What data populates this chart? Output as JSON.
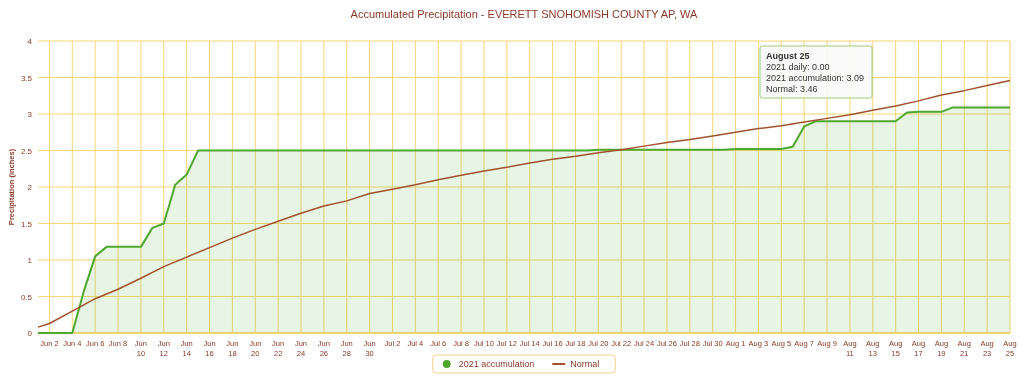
{
  "chart_data": {
    "type": "area",
    "title": "Accumulated Precipitation - EVERETT SNOHOMISH COUNTY AP, WA",
    "ylabel": "Precipitation (inches)",
    "xlim": [
      "2021-06-01",
      "2021-08-25"
    ],
    "ylim": [
      0,
      4
    ],
    "yticks": [
      0,
      0.5,
      1,
      1.5,
      2,
      2.5,
      3,
      3.5,
      4
    ],
    "xticks": [
      {
        "value": "2021-06-02",
        "label": "Jun 2"
      },
      {
        "value": "2021-06-04",
        "label": "Jun 4"
      },
      {
        "value": "2021-06-06",
        "label": "Jun 6"
      },
      {
        "value": "2021-06-08",
        "label": "Jun 8"
      },
      {
        "value": "2021-06-10",
        "label": "Jun 10"
      },
      {
        "value": "2021-06-12",
        "label": "Jun 12"
      },
      {
        "value": "2021-06-14",
        "label": "Jun 14"
      },
      {
        "value": "2021-06-16",
        "label": "Jun 16"
      },
      {
        "value": "2021-06-18",
        "label": "Jun 18"
      },
      {
        "value": "2021-06-20",
        "label": "Jun 20"
      },
      {
        "value": "2021-06-22",
        "label": "Jun 22"
      },
      {
        "value": "2021-06-24",
        "label": "Jun 24"
      },
      {
        "value": "2021-06-26",
        "label": "Jun 26"
      },
      {
        "value": "2021-06-28",
        "label": "Jun 28"
      },
      {
        "value": "2021-06-30",
        "label": "Jun 30"
      },
      {
        "value": "2021-07-02",
        "label": "Jul 2"
      },
      {
        "value": "2021-07-04",
        "label": "Jul 4"
      },
      {
        "value": "2021-07-06",
        "label": "Jul 6"
      },
      {
        "value": "2021-07-08",
        "label": "Jul 8"
      },
      {
        "value": "2021-07-10",
        "label": "Jul 10"
      },
      {
        "value": "2021-07-12",
        "label": "Jul 12"
      },
      {
        "value": "2021-07-14",
        "label": "Jul 14"
      },
      {
        "value": "2021-07-16",
        "label": "Jul 16"
      },
      {
        "value": "2021-07-18",
        "label": "Jul 18"
      },
      {
        "value": "2021-07-20",
        "label": "Jul 20"
      },
      {
        "value": "2021-07-22",
        "label": "Jul 22"
      },
      {
        "value": "2021-07-24",
        "label": "Jul 24"
      },
      {
        "value": "2021-07-26",
        "label": "Jul 26"
      },
      {
        "value": "2021-07-28",
        "label": "Jul 28"
      },
      {
        "value": "2021-07-30",
        "label": "Jul 30"
      },
      {
        "value": "2021-08-01",
        "label": "Aug 1"
      },
      {
        "value": "2021-08-03",
        "label": "Aug 3"
      },
      {
        "value": "2021-08-05",
        "label": "Aug 5"
      },
      {
        "value": "2021-08-07",
        "label": "Aug 7"
      },
      {
        "value": "2021-08-09",
        "label": "Aug 9"
      },
      {
        "value": "2021-08-11",
        "label": "Aug 11"
      },
      {
        "value": "2021-08-13",
        "label": "Aug 13"
      },
      {
        "value": "2021-08-15",
        "label": "Aug 15"
      },
      {
        "value": "2021-08-17",
        "label": "Aug 17"
      },
      {
        "value": "2021-08-19",
        "label": "Aug 19"
      },
      {
        "value": "2021-08-21",
        "label": "Aug 21"
      },
      {
        "value": "2021-08-23",
        "label": "Aug 23"
      },
      {
        "value": "2021-08-25",
        "label": "Aug 25"
      }
    ],
    "grid": true,
    "legend": "bottom",
    "marker": "none",
    "annotations": [
      "August 25",
      "2021 daily: 0.00",
      "2021 accumulation: 3.09",
      "Normal: 3.46"
    ],
    "series": [
      {
        "name": "2021 accumulation",
        "color": "#4fa82e",
        "x": [
          "2021-06-01",
          "2021-06-02",
          "2021-06-03",
          "2021-06-04",
          "2021-06-05",
          "2021-06-06",
          "2021-06-07",
          "2021-06-08",
          "2021-06-09",
          "2021-06-10",
          "2021-06-11",
          "2021-06-12",
          "2021-06-13",
          "2021-06-14",
          "2021-06-15",
          "2021-06-16",
          "2021-06-17",
          "2021-06-18",
          "2021-06-19",
          "2021-06-20",
          "2021-06-21",
          "2021-06-22",
          "2021-06-23",
          "2021-06-24",
          "2021-06-25",
          "2021-06-26",
          "2021-06-27",
          "2021-06-28",
          "2021-06-29",
          "2021-06-30",
          "2021-07-01",
          "2021-07-02",
          "2021-07-03",
          "2021-07-04",
          "2021-07-05",
          "2021-07-06",
          "2021-07-07",
          "2021-07-08",
          "2021-07-09",
          "2021-07-10",
          "2021-07-11",
          "2021-07-12",
          "2021-07-13",
          "2021-07-14",
          "2021-07-15",
          "2021-07-16",
          "2021-07-17",
          "2021-07-18",
          "2021-07-19",
          "2021-07-20",
          "2021-07-21",
          "2021-07-22",
          "2021-07-23",
          "2021-07-24",
          "2021-07-25",
          "2021-07-26",
          "2021-07-27",
          "2021-07-28",
          "2021-07-29",
          "2021-07-30",
          "2021-07-31",
          "2021-08-01",
          "2021-08-02",
          "2021-08-03",
          "2021-08-04",
          "2021-08-05",
          "2021-08-06",
          "2021-08-07",
          "2021-08-08",
          "2021-08-09",
          "2021-08-10",
          "2021-08-11",
          "2021-08-12",
          "2021-08-13",
          "2021-08-14",
          "2021-08-15",
          "2021-08-16",
          "2021-08-17",
          "2021-08-18",
          "2021-08-19",
          "2021-08-20",
          "2021-08-21",
          "2021-08-22",
          "2021-08-23",
          "2021-08-24",
          "2021-08-25"
        ],
        "values": [
          0,
          0,
          0,
          0,
          0.57,
          1.05,
          1.18,
          1.18,
          1.18,
          1.18,
          1.44,
          1.5,
          2.03,
          2.17,
          2.5,
          2.5,
          2.5,
          2.5,
          2.5,
          2.5,
          2.5,
          2.5,
          2.5,
          2.5,
          2.5,
          2.5,
          2.5,
          2.5,
          2.5,
          2.5,
          2.5,
          2.5,
          2.5,
          2.5,
          2.5,
          2.5,
          2.5,
          2.5,
          2.5,
          2.5,
          2.5,
          2.5,
          2.5,
          2.5,
          2.5,
          2.5,
          2.5,
          2.5,
          2.5,
          2.51,
          2.51,
          2.51,
          2.51,
          2.51,
          2.51,
          2.51,
          2.51,
          2.51,
          2.51,
          2.51,
          2.51,
          2.52,
          2.52,
          2.52,
          2.52,
          2.52,
          2.55,
          2.83,
          2.9,
          2.9,
          2.9,
          2.9,
          2.9,
          2.9,
          2.9,
          2.9,
          3.02,
          3.03,
          3.03,
          3.03,
          3.09,
          3.09,
          3.09,
          3.09,
          3.09,
          3.09
        ]
      },
      {
        "name": "Normal",
        "type": "line",
        "color": "#a0522d",
        "x": [
          "2021-06-01",
          "2021-06-02",
          "2021-06-04",
          "2021-06-06",
          "2021-06-08",
          "2021-06-10",
          "2021-06-12",
          "2021-06-14",
          "2021-06-16",
          "2021-06-18",
          "2021-06-20",
          "2021-06-22",
          "2021-06-24",
          "2021-06-26",
          "2021-06-28",
          "2021-06-30",
          "2021-07-02",
          "2021-07-04",
          "2021-07-06",
          "2021-07-08",
          "2021-07-10",
          "2021-07-12",
          "2021-07-14",
          "2021-07-16",
          "2021-07-18",
          "2021-07-20",
          "2021-07-22",
          "2021-07-24",
          "2021-07-26",
          "2021-07-28",
          "2021-07-30",
          "2021-08-01",
          "2021-08-03",
          "2021-08-05",
          "2021-08-07",
          "2021-08-09",
          "2021-08-11",
          "2021-08-13",
          "2021-08-15",
          "2021-08-17",
          "2021-08-19",
          "2021-08-21",
          "2021-08-23",
          "2021-08-25"
        ],
        "values": [
          0.08,
          0.13,
          0.3,
          0.47,
          0.6,
          0.75,
          0.91,
          1.04,
          1.17,
          1.3,
          1.42,
          1.53,
          1.64,
          1.74,
          1.81,
          1.91,
          1.97,
          2.03,
          2.1,
          2.16,
          2.22,
          2.27,
          2.33,
          2.38,
          2.42,
          2.47,
          2.51,
          2.56,
          2.61,
          2.65,
          2.7,
          2.75,
          2.8,
          2.84,
          2.89,
          2.94,
          2.99,
          3.05,
          3.11,
          3.18,
          3.26,
          3.32,
          3.39,
          3.46
        ]
      }
    ]
  }
}
